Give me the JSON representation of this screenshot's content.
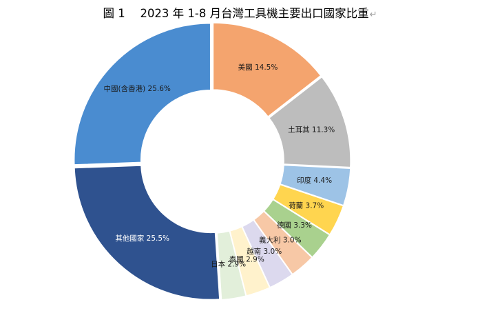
{
  "title": "圖 1　 2023 年 1-8 月台灣工具機主要出口國家比重",
  "title_mark": "↵",
  "chart_data": {
    "type": "pie",
    "variant": "donut",
    "title": "圖 1　 2023 年 1-8 月台灣工具機主要出口國家比重",
    "unit": "%",
    "slices": [
      {
        "label": "美國",
        "value": 14.5,
        "value_label": "14.5%",
        "color": "#F4A46E",
        "text_color": "#1a1a1a"
      },
      {
        "label": "土耳其",
        "value": 11.3,
        "value_label": "11.3%",
        "color": "#BDBDBD",
        "text_color": "#1a1a1a"
      },
      {
        "label": "印度",
        "value": 4.4,
        "value_label": "4.4%",
        "color": "#9DC3E6",
        "text_color": "#1a1a1a"
      },
      {
        "label": "荷蘭",
        "value": 3.7,
        "value_label": "3.7%",
        "color": "#FFD54F",
        "text_color": "#1a1a1a"
      },
      {
        "label": "德國",
        "value": 3.3,
        "value_label": "3.3%",
        "color": "#A9D18E",
        "text_color": "#1a1a1a"
      },
      {
        "label": "義大利",
        "value": 3.0,
        "value_label": "3.0%",
        "color": "#F7C8A6",
        "text_color": "#1a1a1a"
      },
      {
        "label": "越南",
        "value": 3.0,
        "value_label": "3.0%",
        "color": "#DCD9EE",
        "text_color": "#1a1a1a"
      },
      {
        "label": "泰國",
        "value": 2.9,
        "value_label": "2.9%",
        "color": "#FFF2CC",
        "text_color": "#1a1a1a"
      },
      {
        "label": "日本",
        "value": 2.9,
        "value_label": "2.9%",
        "color": "#E2EFDA",
        "text_color": "#1a1a1a"
      },
      {
        "label": "其他國家",
        "value": 25.5,
        "value_label": "25.5%",
        "color": "#2F528F",
        "text_color": "#ffffff"
      },
      {
        "label": "中國(含香港)",
        "value": 25.6,
        "value_label": "25.6%",
        "color": "#4A8CD0",
        "text_color": "#1a1a1a"
      }
    ],
    "start_slice": "美國",
    "direction": "clockwise",
    "legend": "none"
  }
}
